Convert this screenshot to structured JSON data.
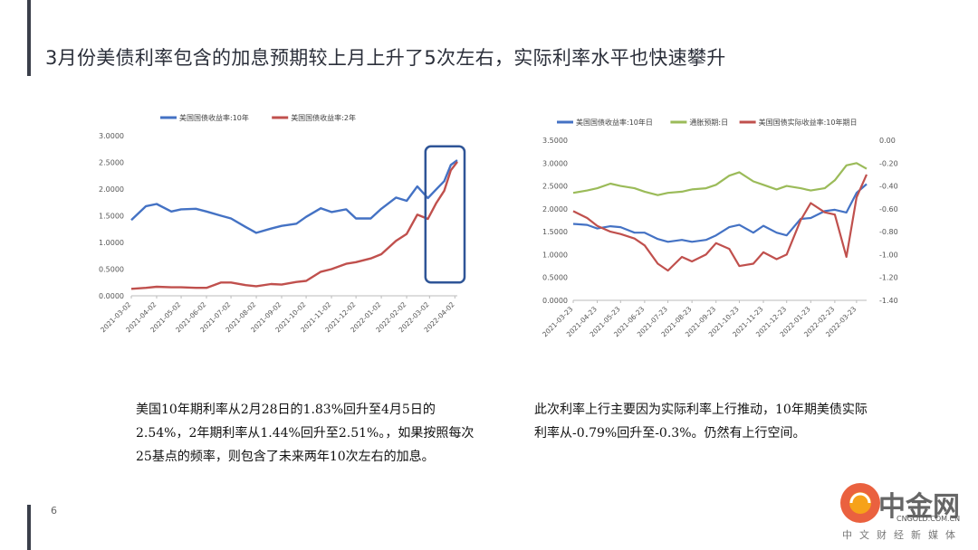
{
  "slide": {
    "title": "3月份美债利率包含的加息预期较上月上升了5次左右，实际利率水平也快速攀升",
    "page_number": "6",
    "left_paragraph": "美国10年期利率从2月28日的1.83%回升至4月5日的2.54%，2年期利率从1.44%回升至2.51%。，如果按照每次25基点的频率，则包含了未来两年10次左右的加息。",
    "right_paragraph": "此次利率上行主要因为实际利率上行推动，10年期美债实际利率从-0.79%回升至-0.3%。仍然有上行空间。"
  },
  "watermark": {
    "brand": "中金网",
    "url": "CNGOLD.COM.CN",
    "subtitle": "中文财经新媒体"
  },
  "colors": {
    "blue": "#4472c4",
    "red": "#c0504d",
    "green": "#9bbb59",
    "accent": "#3a3f4a",
    "highlight_box": "#2f5597"
  },
  "chart_data": [
    {
      "type": "line",
      "title": "",
      "legend_position": "top",
      "ylim": [
        0,
        3
      ],
      "yticks": [
        "0.0000",
        "0.5000",
        "1.0000",
        "1.5000",
        "2.0000",
        "2.5000",
        "3.0000"
      ],
      "xticks": [
        "2021-03-02",
        "2021-04-02",
        "2021-05-02",
        "2021-06-02",
        "2021-07-02",
        "2021-08-02",
        "2021-09-02",
        "2021-10-02",
        "2021-11-02",
        "2021-12-02",
        "2022-01-02",
        "2022-02-02",
        "2022-03-02",
        "2022-04-02"
      ],
      "x_range": [
        "2021-03-02",
        "2022-04-05"
      ],
      "annotation": "highlight box around March 2022 rise",
      "series": [
        {
          "name": "美国国债收益率:10年",
          "color": "#4472c4",
          "x": [
            "2021-03-02",
            "2021-03-20",
            "2021-04-02",
            "2021-04-20",
            "2021-05-02",
            "2021-05-20",
            "2021-06-02",
            "2021-06-20",
            "2021-07-02",
            "2021-07-20",
            "2021-08-02",
            "2021-08-20",
            "2021-09-02",
            "2021-09-20",
            "2021-10-02",
            "2021-10-20",
            "2021-11-02",
            "2021-11-20",
            "2021-12-02",
            "2021-12-20",
            "2022-01-02",
            "2022-01-20",
            "2022-02-02",
            "2022-02-15",
            "2022-02-28",
            "2022-03-10",
            "2022-03-20",
            "2022-03-28",
            "2022-04-05"
          ],
          "values": [
            1.42,
            1.68,
            1.72,
            1.58,
            1.62,
            1.63,
            1.58,
            1.5,
            1.45,
            1.29,
            1.18,
            1.26,
            1.31,
            1.35,
            1.48,
            1.64,
            1.57,
            1.62,
            1.45,
            1.45,
            1.63,
            1.84,
            1.78,
            2.05,
            1.83,
            1.99,
            2.15,
            2.45,
            2.54
          ]
        },
        {
          "name": "美国国债收益率:2年",
          "color": "#c0504d",
          "x": [
            "2021-03-02",
            "2021-03-20",
            "2021-04-02",
            "2021-04-20",
            "2021-05-02",
            "2021-05-20",
            "2021-06-02",
            "2021-06-20",
            "2021-07-02",
            "2021-07-20",
            "2021-08-02",
            "2021-08-20",
            "2021-09-02",
            "2021-09-20",
            "2021-10-02",
            "2021-10-20",
            "2021-11-02",
            "2021-11-20",
            "2021-12-02",
            "2021-12-20",
            "2022-01-02",
            "2022-01-20",
            "2022-02-02",
            "2022-02-15",
            "2022-02-28",
            "2022-03-10",
            "2022-03-20",
            "2022-03-28",
            "2022-04-05"
          ],
          "values": [
            0.13,
            0.15,
            0.17,
            0.16,
            0.16,
            0.15,
            0.15,
            0.25,
            0.25,
            0.2,
            0.18,
            0.22,
            0.21,
            0.26,
            0.28,
            0.45,
            0.5,
            0.6,
            0.63,
            0.7,
            0.78,
            1.03,
            1.16,
            1.52,
            1.44,
            1.73,
            1.97,
            2.35,
            2.51
          ]
        }
      ]
    },
    {
      "type": "line",
      "title": "",
      "legend_position": "top",
      "ylim_left": [
        0,
        3.5
      ],
      "ylim_right": [
        -1.4,
        0
      ],
      "yticks_left": [
        "0.0000",
        "0.5000",
        "1.0000",
        "1.5000",
        "2.0000",
        "2.5000",
        "3.0000",
        "3.5000"
      ],
      "yticks_right": [
        "-1.40",
        "-1.20",
        "-1.00",
        "-0.80",
        "-0.60",
        "-0.40",
        "-0.20",
        "0.00"
      ],
      "xticks": [
        "2021-03-23",
        "2021-04-23",
        "2021-05-23",
        "2021-06-23",
        "2021-07-23",
        "2021-08-23",
        "2021-09-23",
        "2021-10-23",
        "2021-11-23",
        "2021-12-23",
        "2022-01-23",
        "2022-02-23",
        "2022-03-23"
      ],
      "x_range": [
        "2021-03-23",
        "2022-04-05"
      ],
      "series": [
        {
          "name": "美国国债收益率:10年日",
          "axis": "left",
          "color": "#4472c4",
          "x": [
            "2021-03-23",
            "2021-04-10",
            "2021-04-23",
            "2021-05-10",
            "2021-05-23",
            "2021-06-10",
            "2021-06-23",
            "2021-07-10",
            "2021-07-23",
            "2021-08-10",
            "2021-08-23",
            "2021-09-10",
            "2021-09-23",
            "2021-10-10",
            "2021-10-23",
            "2021-11-10",
            "2021-11-23",
            "2021-12-10",
            "2021-12-23",
            "2022-01-10",
            "2022-01-23",
            "2022-02-10",
            "2022-02-23",
            "2022-03-10",
            "2022-03-23",
            "2022-04-05"
          ],
          "values": [
            1.67,
            1.65,
            1.57,
            1.62,
            1.6,
            1.48,
            1.48,
            1.34,
            1.28,
            1.32,
            1.28,
            1.32,
            1.42,
            1.6,
            1.65,
            1.48,
            1.63,
            1.48,
            1.42,
            1.78,
            1.8,
            1.95,
            1.98,
            1.92,
            2.35,
            2.54
          ]
        },
        {
          "name": "通胀预期:日",
          "axis": "right",
          "color": "#9bbb59",
          "x": [
            "2021-03-23",
            "2021-04-10",
            "2021-04-23",
            "2021-05-10",
            "2021-05-23",
            "2021-06-10",
            "2021-06-23",
            "2021-07-10",
            "2021-07-23",
            "2021-08-10",
            "2021-08-23",
            "2021-09-10",
            "2021-09-23",
            "2021-10-10",
            "2021-10-23",
            "2021-11-10",
            "2021-11-23",
            "2021-12-10",
            "2021-12-23",
            "2022-01-10",
            "2022-01-23",
            "2022-02-10",
            "2022-02-23",
            "2022-03-10",
            "2022-03-23",
            "2022-04-05"
          ],
          "values": [
            -0.46,
            -0.44,
            -0.42,
            -0.38,
            -0.4,
            -0.42,
            -0.45,
            -0.48,
            -0.46,
            -0.45,
            -0.43,
            -0.42,
            -0.39,
            -0.31,
            -0.28,
            -0.36,
            -0.39,
            -0.43,
            -0.4,
            -0.42,
            -0.44,
            -0.42,
            -0.35,
            -0.22,
            -0.2,
            -0.25
          ]
        },
        {
          "name": "美国国债实际收益率:10年期日",
          "axis": "right",
          "color": "#c0504d",
          "x": [
            "2021-03-23",
            "2021-04-10",
            "2021-04-23",
            "2021-05-10",
            "2021-05-23",
            "2021-06-10",
            "2021-06-23",
            "2021-07-10",
            "2021-07-23",
            "2021-08-10",
            "2021-08-23",
            "2021-09-10",
            "2021-09-23",
            "2021-10-10",
            "2021-10-23",
            "2021-11-10",
            "2021-11-23",
            "2021-12-10",
            "2021-12-23",
            "2022-01-10",
            "2022-01-23",
            "2022-02-10",
            "2022-02-23",
            "2022-03-10",
            "2022-03-23",
            "2022-04-05"
          ],
          "values": [
            -0.62,
            -0.68,
            -0.75,
            -0.8,
            -0.82,
            -0.86,
            -0.92,
            -1.08,
            -1.14,
            -1.02,
            -1.06,
            -1.0,
            -0.9,
            -0.95,
            -1.1,
            -1.08,
            -0.98,
            -1.04,
            -1.0,
            -0.7,
            -0.55,
            -0.63,
            -0.65,
            -1.02,
            -0.5,
            -0.3
          ]
        }
      ]
    }
  ]
}
